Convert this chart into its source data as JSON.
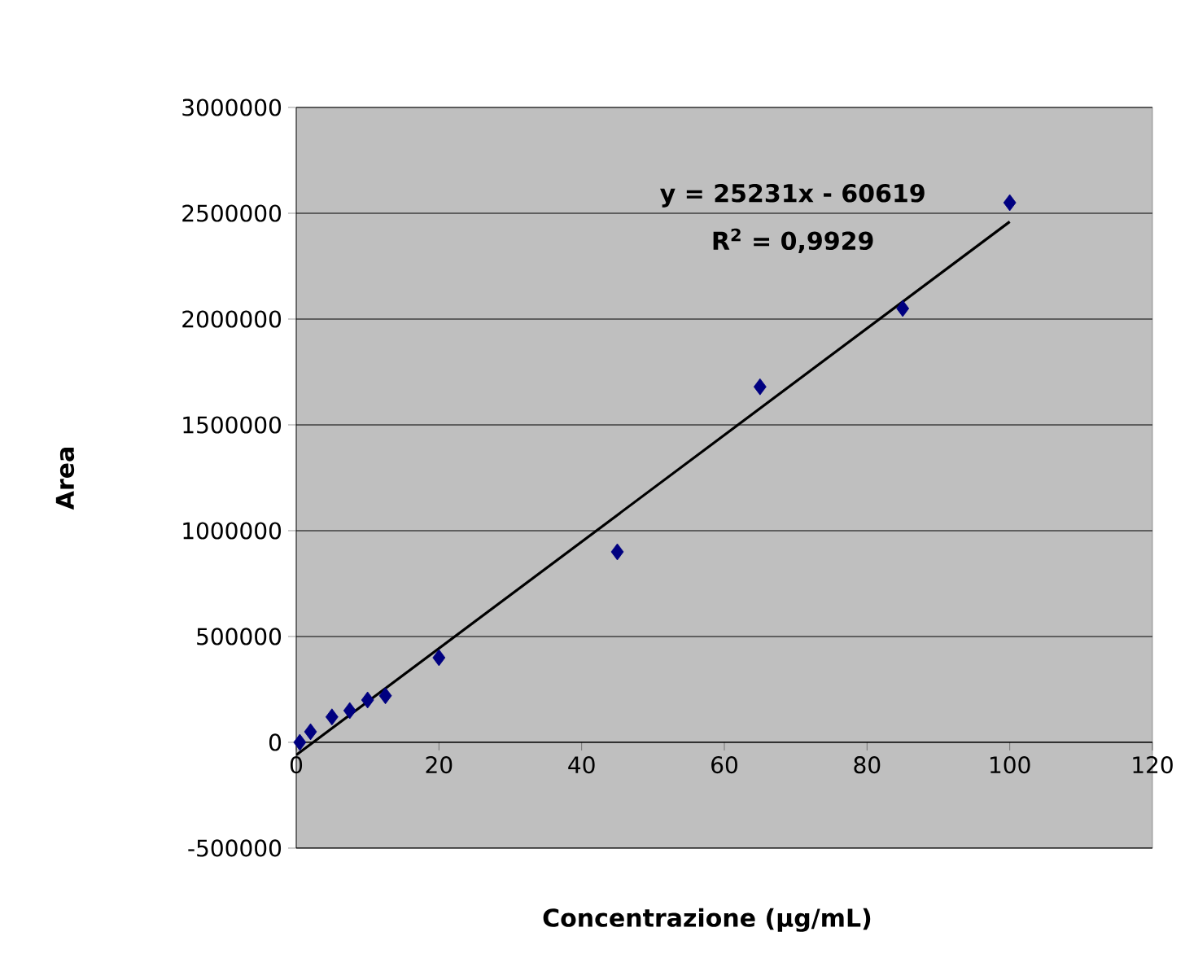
{
  "chart_data": {
    "type": "scatter",
    "xlabel": "Concentrazione (µg/mL)",
    "ylabel": "Area",
    "annotations": [
      "y = 25231x - 60619",
      "R$^{2}$ = 0,9929"
    ],
    "xlim": [
      0,
      120
    ],
    "xticks": [
      0,
      20,
      40,
      60,
      80,
      100,
      120
    ],
    "ylim": [
      -500000,
      3000000
    ],
    "yticks": [
      -500000,
      0,
      500000,
      1000000,
      1500000,
      2000000,
      2500000,
      3000000
    ],
    "grid": "y",
    "marker": "diamond",
    "series": [
      {
        "color": "#000080",
        "x": [
          0.5,
          2,
          5,
          7.5,
          10,
          12.5,
          20,
          45,
          65,
          85,
          100
        ],
        "values": [
          0,
          50000,
          120000,
          150000,
          200000,
          220000,
          400000,
          900000,
          1680000,
          2050000,
          2550000
        ]
      },
      {
        "type": "line",
        "color": "#000000",
        "marker": "none",
        "line_style": "solid",
        "x": [
          0,
          100
        ],
        "values": [
          -60000,
          2460000
        ]
      }
    ]
  }
}
